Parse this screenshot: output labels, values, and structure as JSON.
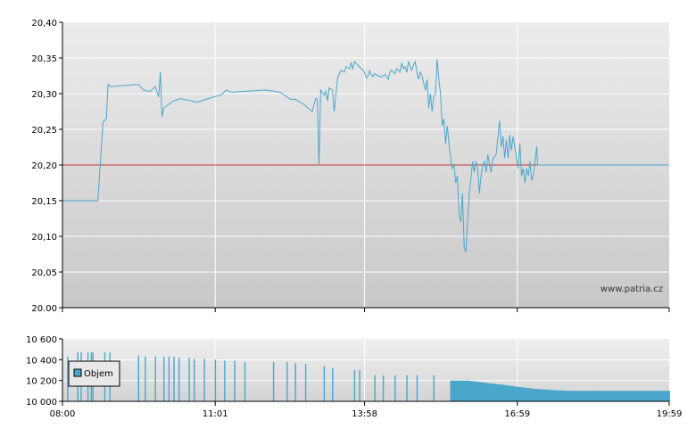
{
  "watermark": "www.patria.cz",
  "legend_label": "Objem",
  "colors": {
    "price_line": "#4ba6cc",
    "reference_line": "#cc3333",
    "volume_bar": "#4ba6cc",
    "grid": "#ffffff",
    "axis": "#000000"
  },
  "chart_data": [
    {
      "type": "line",
      "title": "",
      "xlabel": "",
      "ylabel": "",
      "ylim": [
        20.0,
        20.4
      ],
      "y_ticks": [
        "20,40",
        "20,35",
        "20,30",
        "20,25",
        "20,20",
        "20,15",
        "20,10",
        "20,05",
        "20.00"
      ],
      "reference_value": 20.2,
      "x_range": [
        "08:00",
        "19:59"
      ],
      "series": [
        {
          "points": [
            [
              "08:00",
              20.15
            ],
            [
              "08:42",
              20.15
            ],
            [
              "08:48",
              20.26
            ],
            [
              "08:52",
              20.265
            ],
            [
              "08:54",
              20.313
            ],
            [
              "08:57",
              20.31
            ],
            [
              "09:20",
              20.312
            ],
            [
              "09:30",
              20.313
            ],
            [
              "09:36",
              20.305
            ],
            [
              "09:44",
              20.303
            ],
            [
              "09:50",
              20.31
            ],
            [
              "09:54",
              20.295
            ],
            [
              "09:56",
              20.33
            ],
            [
              "09:58",
              20.268
            ],
            [
              "10:00",
              20.28
            ],
            [
              "10:12",
              20.29
            ],
            [
              "10:20",
              20.293
            ],
            [
              "10:40",
              20.288
            ],
            [
              "10:58",
              20.295
            ],
            [
              "11:08",
              20.298
            ],
            [
              "11:14",
              20.305
            ],
            [
              "11:20",
              20.302
            ],
            [
              "12:00",
              20.305
            ],
            [
              "12:18",
              20.302
            ],
            [
              "12:30",
              20.292
            ],
            [
              "12:36",
              20.292
            ],
            [
              "12:46",
              20.285
            ],
            [
              "12:56",
              20.275
            ],
            [
              "13:00",
              20.293
            ],
            [
              "13:02",
              20.293
            ],
            [
              "13:04",
              20.2
            ],
            [
              "13:06",
              20.305
            ],
            [
              "13:10",
              20.298
            ],
            [
              "13:12",
              20.303
            ],
            [
              "13:14",
              20.29
            ],
            [
              "13:16",
              20.308
            ],
            [
              "13:20",
              20.305
            ],
            [
              "13:22",
              20.275
            ],
            [
              "13:26",
              20.322
            ],
            [
              "13:30",
              20.333
            ],
            [
              "13:34",
              20.33
            ],
            [
              "13:36",
              20.338
            ],
            [
              "13:40",
              20.335
            ],
            [
              "13:42",
              20.343
            ],
            [
              "13:44",
              20.335
            ],
            [
              "13:46",
              20.345
            ],
            [
              "13:50",
              20.34
            ],
            [
              "13:54",
              20.335
            ],
            [
              "13:58",
              20.33
            ],
            [
              "14:00",
              20.322
            ],
            [
              "14:02",
              20.325
            ],
            [
              "14:04",
              20.332
            ],
            [
              "14:06",
              20.326
            ],
            [
              "14:08",
              20.324
            ],
            [
              "14:10",
              20.328
            ],
            [
              "14:14",
              20.325
            ],
            [
              "14:18",
              20.323
            ],
            [
              "14:22",
              20.327
            ],
            [
              "14:26",
              20.32
            ],
            [
              "14:28",
              20.33
            ],
            [
              "14:30",
              20.333
            ],
            [
              "14:34",
              20.328
            ],
            [
              "14:36",
              20.335
            ],
            [
              "14:40",
              20.33
            ],
            [
              "14:42",
              20.343
            ],
            [
              "14:44",
              20.335
            ],
            [
              "14:46",
              20.338
            ],
            [
              "14:48",
              20.33
            ],
            [
              "14:50",
              20.345
            ],
            [
              "14:52",
              20.338
            ],
            [
              "14:54",
              20.333
            ],
            [
              "14:56",
              20.34
            ],
            [
              "14:58",
              20.345
            ],
            [
              "15:00",
              20.33
            ],
            [
              "15:02",
              20.32
            ],
            [
              "15:04",
              20.33
            ],
            [
              "15:06",
              20.325
            ],
            [
              "15:08",
              20.315
            ],
            [
              "15:10",
              20.305
            ],
            [
              "15:12",
              20.32
            ],
            [
              "15:14",
              20.28
            ],
            [
              "15:16",
              20.3
            ],
            [
              "15:18",
              20.275
            ],
            [
              "15:20",
              20.295
            ],
            [
              "15:22",
              20.3
            ],
            [
              "15:24",
              20.348
            ],
            [
              "15:26",
              20.32
            ],
            [
              "15:28",
              20.3
            ],
            [
              "15:30",
              20.255
            ],
            [
              "15:32",
              20.265
            ],
            [
              "15:34",
              20.23
            ],
            [
              "15:36",
              20.255
            ],
            [
              "15:38",
              20.23
            ],
            [
              "15:40",
              20.21
            ],
            [
              "15:42",
              20.195
            ],
            [
              "15:44",
              20.2
            ],
            [
              "15:46",
              20.175
            ],
            [
              "15:48",
              20.185
            ],
            [
              "15:50",
              20.13
            ],
            [
              "15:52",
              20.12
            ],
            [
              "15:54",
              20.16
            ],
            [
              "15:56",
              20.085
            ],
            [
              "15:58",
              20.078
            ],
            [
              "16:00",
              20.12
            ],
            [
              "16:02",
              20.16
            ],
            [
              "16:04",
              20.18
            ],
            [
              "16:06",
              20.205
            ],
            [
              "16:08",
              20.19
            ],
            [
              "16:10",
              20.205
            ],
            [
              "16:12",
              20.195
            ],
            [
              "16:14",
              20.16
            ],
            [
              "16:16",
              20.185
            ],
            [
              "16:18",
              20.2
            ],
            [
              "16:20",
              20.205
            ],
            [
              "16:22",
              20.19
            ],
            [
              "16:24",
              20.215
            ],
            [
              "16:26",
              20.2
            ],
            [
              "16:28",
              20.19
            ],
            [
              "16:30",
              20.208
            ],
            [
              "16:34",
              20.215
            ],
            [
              "16:38",
              20.262
            ],
            [
              "16:40",
              20.225
            ],
            [
              "16:42",
              20.24
            ],
            [
              "16:44",
              20.21
            ],
            [
              "16:46",
              20.235
            ],
            [
              "16:48",
              20.21
            ],
            [
              "16:50",
              20.242
            ],
            [
              "16:52",
              20.22
            ],
            [
              "16:54",
              20.24
            ],
            [
              "16:56",
              20.225
            ],
            [
              "16:58",
              20.21
            ],
            [
              "17:00",
              20.195
            ],
            [
              "17:02",
              20.23
            ],
            [
              "17:04",
              20.185
            ],
            [
              "17:06",
              20.195
            ],
            [
              "17:08",
              20.175
            ],
            [
              "17:10",
              20.195
            ],
            [
              "17:12",
              20.185
            ],
            [
              "17:14",
              20.205
            ],
            [
              "17:16",
              20.178
            ],
            [
              "17:18",
              20.185
            ],
            [
              "17:20",
              20.205
            ],
            [
              "17:22",
              20.226
            ],
            [
              "17:23",
              20.2
            ],
            [
              "19:59",
              20.2
            ]
          ]
        }
      ]
    },
    {
      "type": "bar",
      "title": "",
      "xlabel": "",
      "ylabel": "",
      "ylim": [
        10000,
        10600
      ],
      "y_ticks": [
        "10 600",
        "10 400",
        "10 200",
        "10 000"
      ],
      "x_ticks": [
        "08:00",
        "11:01",
        "13:58",
        "16:59",
        "19:59"
      ],
      "series": [
        {
          "name": "Objem",
          "volume_bars": [
            [
              "08:06",
              10430
            ],
            [
              "08:18",
              10470
            ],
            [
              "08:22",
              10470
            ],
            [
              "08:30",
              10470
            ],
            [
              "08:34",
              10470
            ],
            [
              "08:36",
              10470
            ],
            [
              "08:50",
              10470
            ],
            [
              "08:56",
              10470
            ],
            [
              "09:30",
              10440
            ],
            [
              "09:38",
              10430
            ],
            [
              "09:50",
              10430
            ],
            [
              "10:00",
              10430
            ],
            [
              "10:06",
              10430
            ],
            [
              "10:12",
              10430
            ],
            [
              "10:18",
              10420
            ],
            [
              "10:30",
              10420
            ],
            [
              "10:36",
              10410
            ],
            [
              "10:48",
              10410
            ],
            [
              "11:01",
              10400
            ],
            [
              "11:12",
              10390
            ],
            [
              "11:24",
              10390
            ],
            [
              "11:36",
              10380
            ],
            [
              "12:10",
              10380
            ],
            [
              "12:26",
              10380
            ],
            [
              "12:36",
              10370
            ],
            [
              "12:48",
              10360
            ],
            [
              "13:10",
              10340
            ],
            [
              "13:20",
              10320
            ],
            [
              "13:46",
              10300
            ],
            [
              "13:52",
              10300
            ],
            [
              "14:10",
              10250
            ],
            [
              "14:20",
              10250
            ],
            [
              "14:34",
              10250
            ],
            [
              "14:48",
              10250
            ],
            [
              "15:00",
              10250
            ],
            [
              "15:20",
              10250
            ],
            [
              "15:40",
              10200
            ],
            [
              "16:00",
              10200
            ],
            [
              "16:20",
              10180
            ],
            [
              "16:40",
              10160
            ],
            [
              "17:00",
              10140
            ],
            [
              "17:20",
              10120
            ],
            [
              "17:40",
              10110
            ],
            [
              "18:00",
              10100
            ],
            [
              "18:30",
              10100
            ],
            [
              "19:00",
              10100
            ],
            [
              "19:30",
              10100
            ],
            [
              "19:59",
              10100
            ]
          ]
        }
      ]
    }
  ]
}
